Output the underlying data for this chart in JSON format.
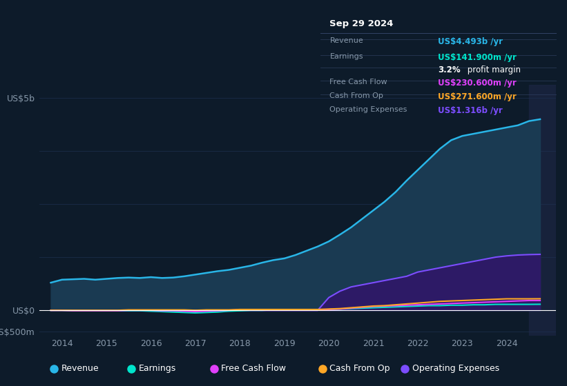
{
  "background_color": "#0d1b2a",
  "plot_bg_color": "#0d1b2a",
  "years": [
    2013.75,
    2014.0,
    2014.25,
    2014.5,
    2014.75,
    2015.0,
    2015.25,
    2015.5,
    2015.75,
    2016.0,
    2016.25,
    2016.5,
    2016.75,
    2017.0,
    2017.25,
    2017.5,
    2017.75,
    2018.0,
    2018.25,
    2018.5,
    2018.75,
    2019.0,
    2019.25,
    2019.5,
    2019.75,
    2020.0,
    2020.25,
    2020.5,
    2020.75,
    2021.0,
    2021.25,
    2021.5,
    2021.75,
    2022.0,
    2022.25,
    2022.5,
    2022.75,
    2023.0,
    2023.25,
    2023.5,
    2023.75,
    2024.0,
    2024.25,
    2024.5,
    2024.75
  ],
  "revenue": [
    0.65,
    0.72,
    0.73,
    0.74,
    0.72,
    0.74,
    0.76,
    0.77,
    0.76,
    0.78,
    0.76,
    0.77,
    0.8,
    0.84,
    0.88,
    0.92,
    0.95,
    1.0,
    1.05,
    1.12,
    1.18,
    1.22,
    1.3,
    1.4,
    1.5,
    1.62,
    1.78,
    1.95,
    2.15,
    2.35,
    2.55,
    2.78,
    3.05,
    3.3,
    3.55,
    3.8,
    4.0,
    4.1,
    4.15,
    4.2,
    4.25,
    4.3,
    4.35,
    4.45,
    4.493
  ],
  "earnings": [
    0.0,
    0.0,
    -0.01,
    -0.01,
    -0.01,
    -0.01,
    -0.01,
    -0.01,
    -0.01,
    -0.02,
    -0.03,
    -0.04,
    -0.05,
    -0.06,
    -0.05,
    -0.04,
    -0.02,
    -0.01,
    0.0,
    0.0,
    0.01,
    0.01,
    0.01,
    0.01,
    0.01,
    0.02,
    0.03,
    0.04,
    0.05,
    0.06,
    0.07,
    0.08,
    0.09,
    0.1,
    0.11,
    0.11,
    0.12,
    0.12,
    0.13,
    0.13,
    0.14,
    0.14,
    0.14,
    0.14,
    0.1419
  ],
  "free_cash_flow": [
    0.0,
    0.0,
    -0.01,
    -0.01,
    -0.01,
    -0.01,
    -0.01,
    0.0,
    0.0,
    0.0,
    -0.01,
    -0.01,
    -0.02,
    -0.03,
    -0.02,
    -0.01,
    0.0,
    0.01,
    0.01,
    0.01,
    0.01,
    0.01,
    0.01,
    0.01,
    0.01,
    0.02,
    0.03,
    0.05,
    0.07,
    0.09,
    0.1,
    0.11,
    0.12,
    0.13,
    0.14,
    0.15,
    0.16,
    0.17,
    0.18,
    0.19,
    0.2,
    0.21,
    0.22,
    0.23,
    0.2306
  ],
  "cash_from_op": [
    0.0,
    0.0,
    0.0,
    0.0,
    0.0,
    0.0,
    0.0,
    0.01,
    0.01,
    0.01,
    0.01,
    0.01,
    0.01,
    0.0,
    0.01,
    0.01,
    0.01,
    0.02,
    0.02,
    0.02,
    0.02,
    0.02,
    0.02,
    0.02,
    0.02,
    0.03,
    0.04,
    0.06,
    0.08,
    0.1,
    0.11,
    0.13,
    0.15,
    0.17,
    0.19,
    0.21,
    0.22,
    0.23,
    0.24,
    0.25,
    0.26,
    0.27,
    0.27,
    0.27,
    0.2716
  ],
  "operating_expenses": [
    0.0,
    0.0,
    0.0,
    0.0,
    0.0,
    0.0,
    0.0,
    0.0,
    0.0,
    0.0,
    0.0,
    0.0,
    0.0,
    0.0,
    0.0,
    0.0,
    0.0,
    0.0,
    0.0,
    0.0,
    0.0,
    0.0,
    0.0,
    0.0,
    0.0,
    0.3,
    0.45,
    0.55,
    0.6,
    0.65,
    0.7,
    0.75,
    0.8,
    0.9,
    0.95,
    1.0,
    1.05,
    1.1,
    1.15,
    1.2,
    1.25,
    1.28,
    1.3,
    1.31,
    1.316
  ],
  "revenue_color": "#29b6e8",
  "revenue_fill": "#1a3a52",
  "earnings_color": "#00e5cc",
  "free_cash_flow_color": "#e040fb",
  "cash_from_op_color": "#ffa726",
  "operating_expenses_color": "#7c4dff",
  "operating_expenses_fill": "#2d1a66",
  "grid_color": "#1e3050",
  "tick_color": "#8899aa",
  "label_color": "#8899aa",
  "xtick_years": [
    2014,
    2015,
    2016,
    2017,
    2018,
    2019,
    2020,
    2021,
    2022,
    2023,
    2024
  ],
  "tooltip": {
    "date": "Sep 29 2024",
    "revenue_val": "US$4.493b",
    "revenue_color": "#29b6e8",
    "earnings_val": "US$141.900m",
    "earnings_color": "#00e5cc",
    "profit_margin": "3.2%",
    "free_cash_flow_val": "US$230.600m",
    "free_cash_flow_color": "#e040fb",
    "cash_from_op_val": "US$271.600m",
    "cash_from_op_color": "#ffa726",
    "operating_expenses_val": "US$1.316b",
    "operating_expenses_color": "#7c4dff"
  },
  "legend_items": [
    {
      "label": "Revenue",
      "color": "#29b6e8"
    },
    {
      "label": "Earnings",
      "color": "#00e5cc"
    },
    {
      "label": "Free Cash Flow",
      "color": "#e040fb"
    },
    {
      "label": "Cash From Op",
      "color": "#ffa726"
    },
    {
      "label": "Operating Expenses",
      "color": "#7c4dff"
    }
  ]
}
